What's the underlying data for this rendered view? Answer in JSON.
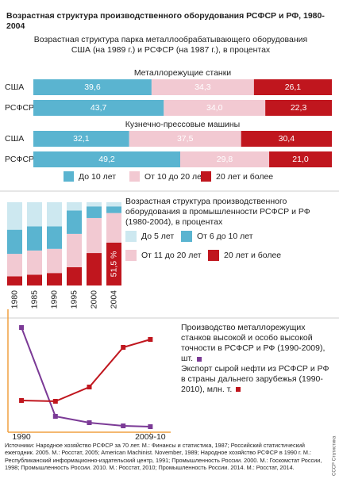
{
  "title": "Возрастная структура производственного оборудования РСФСР и РФ, 1980-2004",
  "chart_data": [
    {
      "type": "bar",
      "orientation": "horizontal",
      "stacked": true,
      "title": "Возрастная структура парка металлообрабатывающего оборудования США (на 1989 г.) и РСФСР (на 1987 г.), в процентах",
      "xlim": [
        0,
        100
      ],
      "category_groups": [
        {
          "title": "Металлорежущие станки",
          "categories": [
            "США",
            "РСФСР"
          ]
        },
        {
          "title": "Кузнечно-прессовые машины",
          "categories": [
            "США",
            "РСФСР"
          ]
        }
      ],
      "series": [
        {
          "name": "До 10 лет",
          "color": "#5ab4d0",
          "values": [
            39.6,
            43.7,
            32.1,
            49.2
          ],
          "value_labels": [
            "39,6",
            "43,7",
            "32,1",
            "49,2"
          ]
        },
        {
          "name": "От 10 до 20 лет",
          "color": "#f2c9d2",
          "values": [
            34.3,
            34.0,
            37.5,
            29.8
          ],
          "value_labels": [
            "34,3",
            "34,0",
            "37,5",
            "29,8"
          ]
        },
        {
          "name": "20 лет и более",
          "color": "#c0161e",
          "values": [
            26.1,
            22.3,
            30.4,
            21.0
          ],
          "value_labels": [
            "26,1",
            "22,3",
            "30,4",
            "21,0"
          ]
        }
      ]
    },
    {
      "type": "bar",
      "stacked": true,
      "title": "Возрастная структура производственного оборудования в промышленности РСФСР и РФ (1980-2004), в процентах",
      "categories": [
        "1980",
        "1985",
        "1990",
        "1995",
        "2000",
        "2004"
      ],
      "ylim": [
        0,
        100
      ],
      "series": [
        {
          "name": "До 5 лет",
          "color": "#cde8f0",
          "values": [
            33,
            29,
            29,
            10,
            5,
            5
          ]
        },
        {
          "name": "От 6 до 10 лет",
          "color": "#5ab4d0",
          "values": [
            29,
            29,
            27,
            28,
            14,
            8
          ]
        },
        {
          "name": "От 11 до 20 лет",
          "color": "#f2c9d2",
          "values": [
            27,
            29,
            29,
            40,
            42,
            35.5
          ]
        },
        {
          "name": "20 лет и более",
          "color": "#c0161e",
          "values": [
            11,
            13,
            15,
            22,
            39,
            51.5
          ],
          "value_labels": [
            null,
            null,
            null,
            null,
            null,
            "51,5 %"
          ]
        }
      ]
    },
    {
      "type": "line",
      "x": [
        1990,
        1995,
        2000,
        2005,
        2009
      ],
      "xlim": [
        1988,
        2012
      ],
      "xticks": [
        {
          "value": 1990,
          "label": "1990"
        },
        {
          "value": 2009,
          "label": "2009-10"
        }
      ],
      "ylim": [
        0,
        15000
      ],
      "y2lim": [
        0,
        300
      ],
      "series": [
        {
          "name": "Производство металлорежущих станков высокой и особо высокой точности в РСФСР и РФ (1990-2009), шт.",
          "color": "#7b3a96",
          "values": [
            13200,
            2000,
            1200,
            800,
            700
          ]
        },
        {
          "name": "Экспорт сырой нефти из РСФСР и РФ в страны дальнего зарубежья (1990-2010), млн. т.",
          "color": "#c0161e",
          "axis": "y2",
          "values": [
            80,
            78,
            114,
            214,
            234
          ]
        }
      ]
    }
  ],
  "sources": "Источники: Народное хозяйство РСФСР за 70 лет. М.: Финансы и статистика, 1987; Российский статистический ежегодник. 2005. М.: Росстат, 2005; American Machinist. November, 1989; Народное хозяйство РСФСР в 1990 г. М.: Республиканский информационно-издательский центр, 1991; Промышленность России. 2000. М.: Госкомстат России, 1998; Промышленность России. 2010. М.: Росстат, 2010; Промышленность России. 2014. М.: Росстат, 2014.",
  "side_label": "СССР Статистика"
}
